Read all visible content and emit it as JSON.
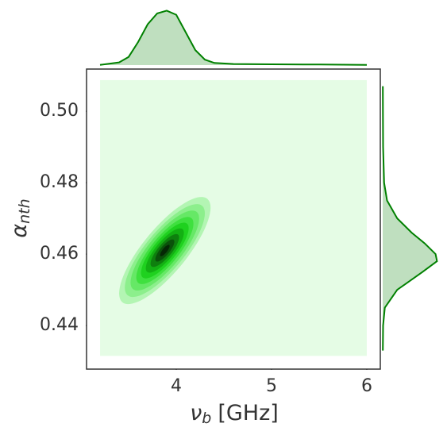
{
  "chart_data": {
    "type": "jointkde",
    "xlabel": {
      "symbol": "ν",
      "subscript": "b",
      "unit": "[GHz]"
    },
    "ylabel": {
      "symbol": "α",
      "subscript": "nth"
    },
    "xlim": [
      3.058,
      6.142
    ],
    "ylim": [
      0.4278,
      0.5118
    ],
    "xticks": [
      4,
      5,
      6
    ],
    "yticks": [
      {
        "value": 0.5,
        "label": "0.50"
      },
      0.48,
      0.46,
      0.44
    ],
    "color": "#008000",
    "correlation": 0.8,
    "background": {
      "color": "#e5fce5",
      "x": [
        3.2,
        6.0
      ],
      "y": [
        0.4315,
        0.5087
      ]
    },
    "contours": [
      {
        "color": "#b3f5b3",
        "x": [
          3.4,
          4.36
        ],
        "y": [
          0.446,
          0.476
        ]
      },
      {
        "color": "#8cef8c",
        "x": [
          3.46,
          4.3
        ],
        "y": [
          0.448,
          0.474
        ]
      },
      {
        "color": "#66e866",
        "x": [
          3.52,
          4.24
        ],
        "y": [
          0.4498,
          0.4722
        ]
      },
      {
        "color": "#3fe03f",
        "x": [
          3.58,
          4.18
        ],
        "y": [
          0.4516,
          0.4704
        ]
      },
      {
        "color": "#1fd11f",
        "x": [
          3.63,
          4.13
        ],
        "y": [
          0.4532,
          0.4688
        ]
      },
      {
        "color": "#13b013",
        "x": [
          3.68,
          4.08
        ],
        "y": [
          0.4548,
          0.4672
        ]
      },
      {
        "color": "#0e800e",
        "x": [
          3.73,
          4.03
        ],
        "y": [
          0.4564,
          0.4656
        ]
      },
      {
        "color": "#0a520a",
        "x": [
          3.78,
          3.98
        ],
        "y": [
          0.4579,
          0.4641
        ]
      },
      {
        "color": "#052805",
        "x": [
          3.83,
          3.93
        ],
        "y": [
          0.4594,
          0.4626
        ]
      }
    ],
    "top_marginal": {
      "x": [
        3.2,
        3.4,
        3.5,
        3.6,
        3.7,
        3.8,
        3.9,
        4.0,
        4.1,
        4.2,
        4.3,
        4.4,
        4.6,
        5.0,
        5.5,
        6.0
      ],
      "values": [
        0.01,
        0.1,
        0.3,
        0.85,
        1.5,
        1.9,
        2.0,
        1.85,
        1.2,
        0.55,
        0.2,
        0.08,
        0.04,
        0.03,
        0.02,
        0.01
      ],
      "lim": [
        0,
        2.1
      ]
    },
    "right_marginal": {
      "y": [
        0.433,
        0.44,
        0.445,
        0.45,
        0.455,
        0.458,
        0.46,
        0.463,
        0.466,
        0.47,
        0.475,
        0.48,
        0.49,
        0.5,
        0.507
      ],
      "values": [
        0.2,
        0.5,
        3,
        20,
        55,
        75,
        73,
        58,
        40,
        20,
        6,
        2,
        0.6,
        0.3,
        0.2
      ],
      "lim": [
        0,
        80
      ]
    }
  }
}
